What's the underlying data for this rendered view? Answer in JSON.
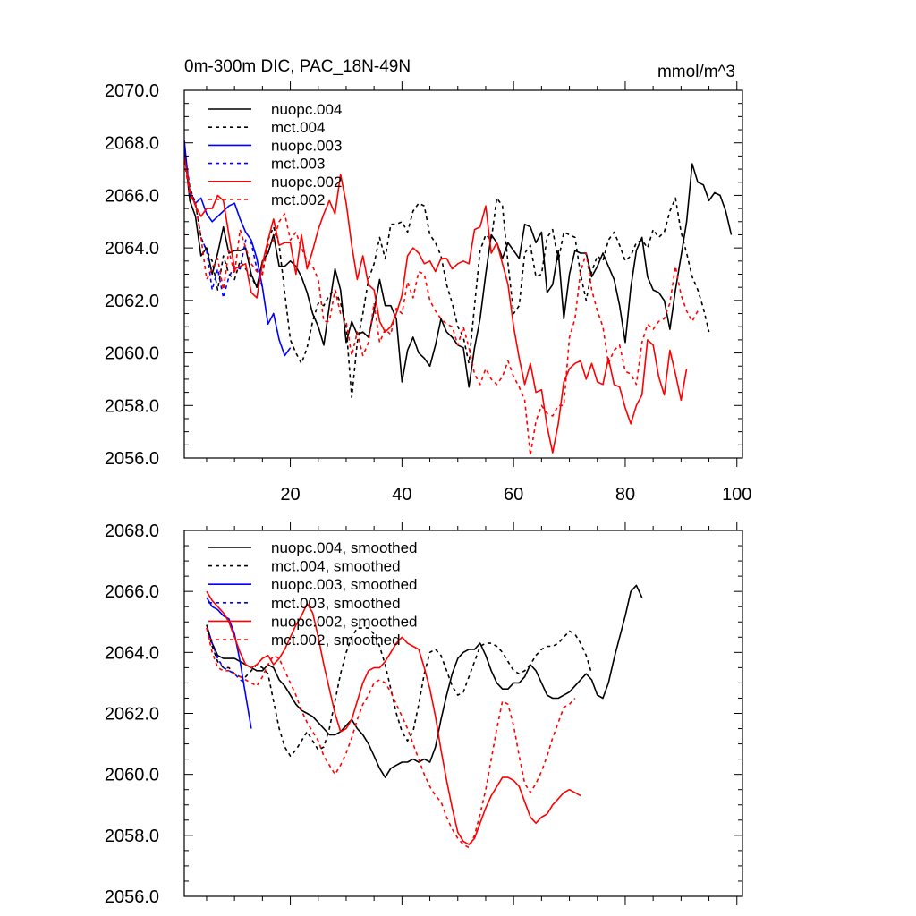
{
  "chart_data": [
    {
      "type": "line",
      "title": "0m-300m DIC, PAC_18N-49N",
      "units": "mmol/m^3",
      "xlim": [
        1,
        101
      ],
      "ylim": [
        2056.0,
        2070.0
      ],
      "yticks": [
        2056.0,
        2058.0,
        2060.0,
        2062.0,
        2064.0,
        2066.0,
        2068.0,
        2070.0
      ],
      "ytick_labels": [
        "2056.0",
        "2058.0",
        "2060.0",
        "2062.0",
        "2064.0",
        "2066.0",
        "2068.0",
        "2070.0"
      ],
      "xticks": [
        20,
        40,
        60,
        80,
        100
      ],
      "xtick_labels": [
        "20",
        "40",
        "60",
        "80",
        "100"
      ],
      "legend_location": "top-left",
      "series": [
        {
          "name": "nuopc.004",
          "color": "#000000",
          "dash": "solid",
          "x_start": 1,
          "values": [
            2067.8,
            2065.8,
            2065.2,
            2063.7,
            2064.0,
            2063.0,
            2063.8,
            2064.8,
            2063.8,
            2063.9,
            2063.9,
            2064.0,
            2063.0,
            2062.5,
            2063.5,
            2063.8,
            2064.5,
            2063.3,
            2063.3,
            2063.5,
            2063.3,
            2062.9,
            2062.3,
            2061.5,
            2061.0,
            2060.3,
            2061.8,
            2063.2,
            2062.4,
            2060.4,
            2061.2,
            2060.7,
            2060.8,
            2060.6,
            2061.6,
            2062.8,
            2061.8,
            2061.8,
            2061.3,
            2058.9,
            2060.1,
            2060.6,
            2060.0,
            2059.8,
            2059.5,
            2060.3,
            2061.3,
            2060.8,
            2060.6,
            2060.3,
            2060.2,
            2058.7,
            2060.2,
            2061.3,
            2063.0,
            2064.5,
            2064.2,
            2063.6,
            2064.2,
            2063.9,
            2063.6,
            2064.9,
            2064.8,
            2064.2,
            2064.6,
            2062.3,
            2062.6,
            2063.9,
            2061.3,
            2063.0,
            2063.9,
            2063.8,
            2063.8,
            2062.9,
            2063.3,
            2063.8,
            2063.3,
            2062.8,
            2061.8,
            2060.4,
            2062.5,
            2063.9,
            2064.4,
            2062.9,
            2062.4,
            2062.3,
            2062.0,
            2060.9,
            2062.4,
            2063.7,
            2065.0,
            2067.2,
            2066.5,
            2066.4,
            2065.8,
            2066.1,
            2066.0,
            2065.4,
            2064.5
          ]
        },
        {
          "name": "mct.004",
          "color": "#000000",
          "dash": "dashed",
          "x_start": 1,
          "values": [
            2067.8,
            2066.3,
            2065.7,
            2064.4,
            2063.9,
            2063.5,
            2062.4,
            2063.7,
            2063.0,
            2062.8,
            2063.5,
            2063.2,
            2062.9,
            2062.5,
            2063.0,
            2064.3,
            2064.8,
            2064.1,
            2062.3,
            2060.5,
            2060.0,
            2059.6,
            2060.2,
            2061.2,
            2061.9,
            2061.8,
            2062.2,
            2062.4,
            2061.9,
            2061.0,
            2058.3,
            2060.4,
            2061.5,
            2062.8,
            2063.4,
            2064.4,
            2063.6,
            2064.9,
            2064.9,
            2065.0,
            2064.6,
            2065.4,
            2065.7,
            2065.6,
            2064.5,
            2064.2,
            2063.7,
            2062.6,
            2061.9,
            2061.0,
            2060.6,
            2059.6,
            2061.8,
            2063.9,
            2064.5,
            2064.3,
            2065.9,
            2065.6,
            2063.4,
            2061.5,
            2061.8,
            2063.8,
            2064.1,
            2062.9,
            2063.0,
            2064.4,
            2064.7,
            2063.5,
            2064.6,
            2064.5,
            2064.4,
            2063.0,
            2062.0,
            2063.1,
            2063.7,
            2063.5,
            2064.3,
            2064.6,
            2064.1,
            2063.5,
            2063.7,
            2064.2,
            2064.3,
            2064.0,
            2064.7,
            2064.4,
            2064.6,
            2065.4,
            2065.9,
            2064.6,
            2063.8,
            2062.9,
            2062.4,
            2061.7,
            2060.8
          ]
        },
        {
          "name": "nuopc.003",
          "color": "#0000ff",
          "dash": "solid",
          "x_start": 1,
          "values": [
            2068.1,
            2066.0,
            2065.7,
            2065.9,
            2065.3,
            2065.0,
            2065.2,
            2065.4,
            2065.6,
            2065.7,
            2065.1,
            2064.6,
            2064.3,
            2063.6,
            2062.5,
            2061.1,
            2061.5,
            2060.5,
            2059.9,
            2060.2
          ]
        },
        {
          "name": "mct.003",
          "color": "#0000ff",
          "dash": "dashed",
          "x_start": 1,
          "values": [
            2067.6,
            2066.2,
            2065.7,
            2064.4,
            2063.9,
            2062.4,
            2063.2,
            2062.1,
            2062.9,
            2063.3,
            2063.2,
            2064.3,
            2064.2,
            2063.2,
            2062.5
          ]
        },
        {
          "name": "nuopc.002",
          "color": "#ff0000",
          "dash": "solid",
          "x_start": 1,
          "values": [
            2067.5,
            2066.2,
            2065.6,
            2065.2,
            2065.5,
            2065.5,
            2066.0,
            2065.8,
            2064.5,
            2063.2,
            2063.3,
            2063.4,
            2062.3,
            2062.1,
            2063.4,
            2064.3,
            2065.1,
            2064.1,
            2064.2,
            2064.2,
            2063.0,
            2064.5,
            2063.2,
            2063.9,
            2064.7,
            2065.3,
            2065.8,
            2065.3,
            2066.8,
            2065.7,
            2064.1,
            2062.8,
            2063.7,
            2062.6,
            2062.4,
            2061.2,
            2060.8,
            2061.0,
            2061.5,
            2062.2,
            2063.7,
            2064.0,
            2063.8,
            2063.4,
            2063.5,
            2063.1,
            2063.6,
            2063.6,
            2063.2,
            2063.4,
            2063.5,
            2063.4,
            2064.7,
            2064.8,
            2065.6,
            2063.8,
            2064.2,
            2063.4,
            2062.6,
            2061.0,
            2059.8,
            2058.8,
            2059.6,
            2058.5,
            2058.6,
            2057.2,
            2056.2,
            2057.3,
            2058.9,
            2059.4,
            2059.6,
            2059.7,
            2059.0,
            2059.6,
            2058.9,
            2058.8,
            2059.8,
            2058.8,
            2058.7,
            2057.9,
            2057.3,
            2058.0,
            2058.4,
            2060.5,
            2060.3,
            2059.1,
            2058.4,
            2060.1,
            2059.2,
            2058.2,
            2059.4
          ]
        },
        {
          "name": "mct.002",
          "color": "#ff0000",
          "dash": "dashed",
          "x_start": 1,
          "values": [
            2067.3,
            2066.0,
            2065.7,
            2064.4,
            2062.8,
            2063.2,
            2063.6,
            2062.4,
            2063.9,
            2063.0,
            2064.7,
            2064.0,
            2063.4,
            2063.1,
            2063.0,
            2064.1,
            2064.3,
            2065.0,
            2065.3,
            2064.3,
            2064.6,
            2064.0,
            2063.5,
            2063.3,
            2062.8,
            2061.2,
            2061.2,
            2062.4,
            2061.5,
            2061.2,
            2059.9,
            2060.8,
            2059.9,
            2060.4,
            2061.9,
            2060.4,
            2060.9,
            2060.7,
            2061.7,
            2061.5,
            2062.7,
            2062.1,
            2063.1,
            2063.0,
            2062.0,
            2061.6,
            2061.3,
            2061.1,
            2061.0,
            2060.3,
            2061.0,
            2060.2,
            2059.2,
            2058.8,
            2059.4,
            2059.0,
            2058.8,
            2059.1,
            2059.7,
            2059.1,
            2058.7,
            2058.2,
            2056.1,
            2057.4,
            2058.0,
            2057.7,
            2057.6,
            2058.0,
            2058.0,
            2060.6,
            2061.3,
            2063.1,
            2063.8,
            2062.4,
            2061.6,
            2061.0,
            2059.6,
            2060.1,
            2060.3,
            2059.3,
            2059.2,
            2058.8,
            2060.4,
            2061.1,
            2060.9,
            2061.2,
            2061.3,
            2061.9,
            2063.3,
            2062.2,
            2061.6,
            2061.2,
            2061.6
          ]
        }
      ]
    },
    {
      "type": "line",
      "title": "",
      "xlim": [
        1,
        101
      ],
      "ylim": [
        2056.0,
        2068.0
      ],
      "yticks": [
        2056.0,
        2058.0,
        2060.0,
        2062.0,
        2064.0,
        2066.0,
        2068.0
      ],
      "ytick_labels": [
        "2056.0",
        "2058.0",
        "2060.0",
        "2062.0",
        "2064.0",
        "2066.0",
        "2068.0"
      ],
      "xticks": [
        20,
        40,
        60,
        80,
        100
      ],
      "xtick_labels": [
        "",
        "",
        "",
        "",
        ""
      ],
      "legend_location": "top-left",
      "series": [
        {
          "name": "nuopc.004, smoothed",
          "color": "#000000",
          "dash": "solid",
          "x_start": 5,
          "values": [
            2064.9,
            2064.3,
            2063.9,
            2063.8,
            2063.8,
            2063.8,
            2063.7,
            2063.6,
            2063.5,
            2063.4,
            2063.4,
            2063.6,
            2063.5,
            2063.1,
            2062.9,
            2062.6,
            2062.3,
            2062.1,
            2062.0,
            2061.9,
            2061.7,
            2061.5,
            2061.3,
            2061.3,
            2061.4,
            2061.6,
            2061.8,
            2061.5,
            2061.3,
            2061.0,
            2060.6,
            2060.2,
            2059.9,
            2060.2,
            2060.3,
            2060.4,
            2060.4,
            2060.5,
            2060.4,
            2060.5,
            2060.4,
            2060.9,
            2061.8,
            2062.6,
            2063.3,
            2063.8,
            2064.0,
            2064.1,
            2064.1,
            2064.3,
            2063.9,
            2063.4,
            2063.0,
            2062.8,
            2062.8,
            2063.0,
            2063.0,
            2063.2,
            2063.6,
            2063.4,
            2063.0,
            2062.6,
            2062.5,
            2062.5,
            2062.6,
            2062.7,
            2062.9,
            2063.1,
            2063.3,
            2063.1,
            2062.6,
            2062.5,
            2063.0,
            2063.8,
            2064.5,
            2065.2,
            2066.0,
            2066.2,
            2065.8
          ]
        },
        {
          "name": "mct.004, smoothed",
          "color": "#000000",
          "dash": "dashed",
          "x_start": 5,
          "values": [
            2064.9,
            2064.2,
            2063.7,
            2063.5,
            2063.5,
            2063.3,
            2063.2,
            2063.2,
            2063.4,
            2063.6,
            2063.5,
            2063.3,
            2062.4,
            2061.5,
            2060.9,
            2060.6,
            2060.8,
            2061.1,
            2061.4,
            2061.1,
            2060.8,
            2060.9,
            2061.5,
            2062.4,
            2063.3,
            2064.0,
            2064.5,
            2064.8,
            2064.8,
            2064.8,
            2064.6,
            2064.2,
            2063.6,
            2062.8,
            2062.0,
            2061.4,
            2061.1,
            2061.4,
            2062.3,
            2063.3,
            2064.0,
            2064.1,
            2063.9,
            2063.4,
            2062.9,
            2062.6,
            2062.7,
            2063.2,
            2063.7,
            2064.2,
            2064.3,
            2064.3,
            2064.2,
            2064.0,
            2063.7,
            2063.4,
            2063.3,
            2063.4,
            2063.6,
            2063.9,
            2064.1,
            2064.2,
            2064.2,
            2064.3,
            2064.5,
            2064.7,
            2064.6,
            2064.3,
            2063.9,
            2063.3
          ]
        },
        {
          "name": "nuopc.003, smoothed",
          "color": "#0000ff",
          "dash": "solid",
          "x_start": 5,
          "values": [
            2065.8,
            2065.5,
            2065.4,
            2065.2,
            2065.1,
            2064.6,
            2063.7,
            2062.6,
            2061.5
          ]
        },
        {
          "name": "mct.003, smoothed",
          "color": "#0000ff",
          "dash": "dashed",
          "x_start": 5,
          "values": [
            2064.8,
            2064.3,
            2063.8,
            2063.5,
            2063.4,
            2063.3,
            2063.1,
            2063.0
          ]
        },
        {
          "name": "nuopc.002, smoothed",
          "color": "#ff0000",
          "dash": "solid",
          "x_start": 5,
          "values": [
            2066.0,
            2065.7,
            2065.5,
            2065.3,
            2065.0,
            2064.5,
            2064.0,
            2063.6,
            2063.5,
            2063.6,
            2063.8,
            2063.9,
            2063.6,
            2063.8,
            2064.1,
            2064.5,
            2064.9,
            2065.2,
            2065.6,
            2065.3,
            2064.5,
            2063.6,
            2062.8,
            2062.0,
            2061.4,
            2061.5,
            2061.8,
            2062.4,
            2063.0,
            2063.4,
            2063.5,
            2063.5,
            2063.7,
            2064.0,
            2064.3,
            2064.5,
            2064.3,
            2064.2,
            2064.1,
            2063.5,
            2062.8,
            2061.9,
            2060.8,
            2059.8,
            2058.9,
            2058.1,
            2057.8,
            2057.7,
            2057.9,
            2058.4,
            2058.9,
            2059.3,
            2059.6,
            2059.9,
            2059.9,
            2059.8,
            2059.6,
            2059.1,
            2058.6,
            2058.4,
            2058.6,
            2058.7,
            2059.0,
            2059.2,
            2059.4,
            2059.5,
            2059.4,
            2059.3
          ]
        },
        {
          "name": "mct.002, smoothed",
          "color": "#ff0000",
          "dash": "dashed",
          "x_start": 5,
          "values": [
            2064.8,
            2064.0,
            2063.5,
            2063.4,
            2063.4,
            2063.3,
            2063.2,
            2063.1,
            2063.0,
            2062.9,
            2063.2,
            2063.6,
            2063.9,
            2063.8,
            2063.4,
            2063.0,
            2062.6,
            2062.1,
            2061.7,
            2061.4,
            2061.1,
            2060.6,
            2060.3,
            2060.0,
            2060.3,
            2060.7,
            2061.2,
            2061.8,
            2062.3,
            2062.6,
            2063.0,
            2063.1,
            2063.0,
            2062.7,
            2062.3,
            2061.9,
            2061.5,
            2061.0,
            2060.5,
            2060.0,
            2059.6,
            2059.3,
            2059.1,
            2058.6,
            2058.2,
            2057.9,
            2057.7,
            2057.6,
            2058.0,
            2058.7,
            2059.5,
            2060.5,
            2061.5,
            2062.4,
            2062.3,
            2061.6,
            2060.6,
            2059.7,
            2059.4,
            2059.7,
            2060.1,
            2060.6,
            2061.2,
            2061.7,
            2062.2,
            2062.3,
            2062.5
          ]
        }
      ]
    }
  ]
}
